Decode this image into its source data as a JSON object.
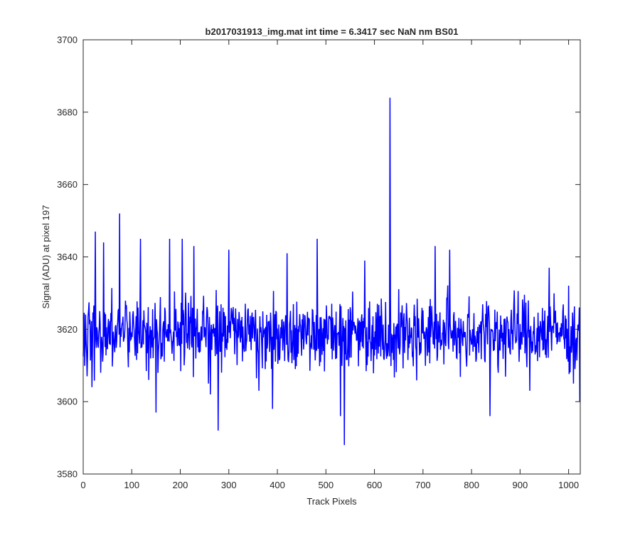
{
  "chart_data": {
    "type": "line",
    "title": "b2017031913_img.mat int time = 6.3417 sec  NaN nm BS01",
    "xlabel": "Track Pixels",
    "ylabel": "Signal (ADU) at pixel 197",
    "xlim": [
      0,
      1024
    ],
    "ylim": [
      3580,
      3700
    ],
    "xticks": [
      0,
      100,
      200,
      300,
      400,
      500,
      600,
      700,
      800,
      900,
      1000
    ],
    "yticks": [
      3580,
      3600,
      3620,
      3640,
      3660,
      3680,
      3700
    ],
    "grid": false,
    "series": [
      {
        "color": "#0000ff",
        "baseline_mean": 3619,
        "noise_range": [
          3604,
          3634
        ],
        "n_points": 1024,
        "notable_points": [
          {
            "x": 8,
            "y": 3607
          },
          {
            "x": 18,
            "y": 3604
          },
          {
            "x": 25,
            "y": 3647
          },
          {
            "x": 42,
            "y": 3644
          },
          {
            "x": 75,
            "y": 3652
          },
          {
            "x": 118,
            "y": 3645
          },
          {
            "x": 135,
            "y": 3606
          },
          {
            "x": 150,
            "y": 3597
          },
          {
            "x": 178,
            "y": 3645
          },
          {
            "x": 204,
            "y": 3645
          },
          {
            "x": 228,
            "y": 3643
          },
          {
            "x": 258,
            "y": 3605
          },
          {
            "x": 262,
            "y": 3602
          },
          {
            "x": 278,
            "y": 3592
          },
          {
            "x": 300,
            "y": 3642
          },
          {
            "x": 362,
            "y": 3603
          },
          {
            "x": 390,
            "y": 3598
          },
          {
            "x": 420,
            "y": 3641
          },
          {
            "x": 482,
            "y": 3645
          },
          {
            "x": 530,
            "y": 3596
          },
          {
            "x": 538,
            "y": 3588
          },
          {
            "x": 580,
            "y": 3639
          },
          {
            "x": 632,
            "y": 3684
          },
          {
            "x": 725,
            "y": 3643
          },
          {
            "x": 755,
            "y": 3642
          },
          {
            "x": 838,
            "y": 3596
          },
          {
            "x": 855,
            "y": 3608
          },
          {
            "x": 920,
            "y": 3603
          },
          {
            "x": 960,
            "y": 3637
          },
          {
            "x": 1010,
            "y": 3605
          },
          {
            "x": 1023,
            "y": 3600
          }
        ]
      }
    ]
  }
}
